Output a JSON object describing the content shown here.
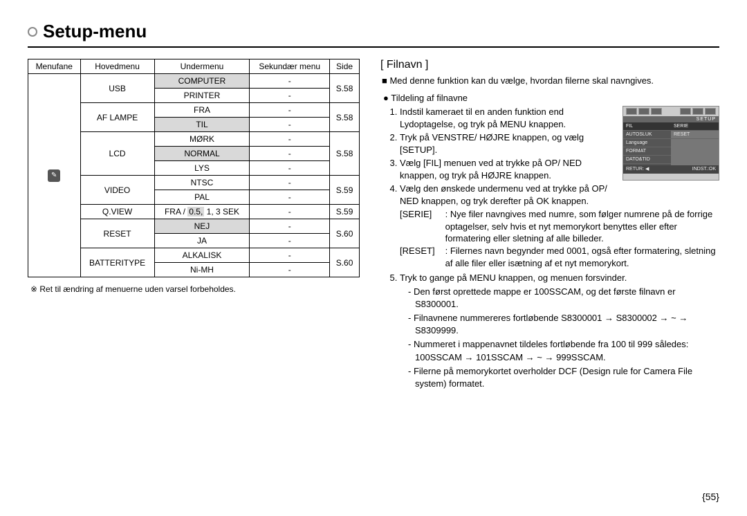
{
  "page": {
    "title": "Setup-menu",
    "number": "{55}"
  },
  "table": {
    "headers": [
      "Menufane",
      "Hovedmenu",
      "Undermenu",
      "Sekundær menu",
      "Side"
    ],
    "rows": [
      {
        "main": "USB",
        "main_rows": 2,
        "sub": "COMPUTER",
        "sub_shaded": true,
        "sec": "-",
        "page": "S.58",
        "page_rows": 2
      },
      {
        "sub": "PRINTER",
        "sec": "-"
      },
      {
        "main": "AF LAMPE",
        "main_rows": 2,
        "sub": "FRA",
        "sec": "-",
        "page": "S.58",
        "page_rows": 2
      },
      {
        "sub": "TIL",
        "sub_shaded": true,
        "sec": "-"
      },
      {
        "main": "LCD",
        "main_rows": 3,
        "sub": "MØRK",
        "sec": "-",
        "page": "S.58",
        "page_rows": 3
      },
      {
        "sub": "NORMAL",
        "sub_shaded": true,
        "sec": "-"
      },
      {
        "sub": "LYS",
        "sec": "-"
      },
      {
        "main": "VIDEO",
        "main_rows": 2,
        "sub": "NTSC",
        "sec": "-",
        "page": "S.59",
        "page_rows": 2
      },
      {
        "sub": "PAL",
        "sec": "-"
      },
      {
        "main": "Q.VIEW",
        "main_rows": 1,
        "sub_parts": [
          "FRA / ",
          "0.5,",
          " 1, 3 SEK"
        ],
        "part_shaded_index": 1,
        "sec": "-",
        "page": "S.59",
        "page_rows": 1
      },
      {
        "main": "RESET",
        "main_rows": 2,
        "sub": "NEJ",
        "sub_shaded": true,
        "sec": "-",
        "page": "S.60",
        "page_rows": 2
      },
      {
        "sub": "JA",
        "sec": "-"
      },
      {
        "main": "BATTERITYPE",
        "main_rows": 2,
        "sub": "ALKALISK",
        "sec": "-",
        "page": "S.60",
        "page_rows": 2
      },
      {
        "sub": "Ni-MH",
        "sec": "-"
      }
    ],
    "footnote": "※ Ret til ændring af menuerne uden varsel forbeholdes."
  },
  "filnavn": {
    "heading": "[ Filnavn ]",
    "intro": "■ Med denne funktion kan du vælge, hvordan filerne skal navngives.",
    "subtitle": "● Tildeling af filnavne",
    "step1": "Indstil kameraet til en anden funktion end Lydoptagelse, og tryk på MENU knappen.",
    "step2": "Tryk på VENSTRE/ HØJRE knappen, og vælg [SETUP].",
    "step3": "Vælg [FIL] menuen ved at trykke på OP/ NED knappen, og tryk på HØJRE knappen.",
    "step4": "Vælg den ønskede undermenu ved at trykke på OP/ NED knappen, og tryk derefter på OK knappen.",
    "serie_tag": "[SERIE]",
    "serie_txt": ": Nye filer navngives med numre, som følger numrene på de forrige optagelser, selv hvis et nyt memorykort benyttes eller efter formatering eller sletning af alle billeder.",
    "reset_tag": "[RESET]",
    "reset_txt": ": Filernes navn begynder med 0001, også efter formatering, sletning af alle filer eller isætning af et nyt memorykort.",
    "step5": "Tryk to gange på MENU knappen, og menuen forsvinder.",
    "note1": "- Den først oprettede mappe er 100SSCAM, og det første filnavn er S8300001.",
    "note2": "- Filnavnene nummereres fortløbende S8300001 → S8300002 → ~ → S8309999.",
    "note3": "- Nummeret i mappenavnet tildeles fortløbende fra 100 til 999 således: 100SSCAM → 101SSCAM → ~ → 999SSCAM.",
    "note4": "- Filerne på memorykortet overholder DCF (Design rule for Camera File system) formatet."
  },
  "lcd": {
    "setup": "SETUP",
    "left_items": [
      "FIL",
      "AUTOSLUK",
      "Language",
      "FORMAT",
      "DATO&TID"
    ],
    "right_items": [
      "SERIE",
      "RESET"
    ],
    "foot_left": "RETUR: ◀",
    "foot_right": "INDST.:OK"
  }
}
